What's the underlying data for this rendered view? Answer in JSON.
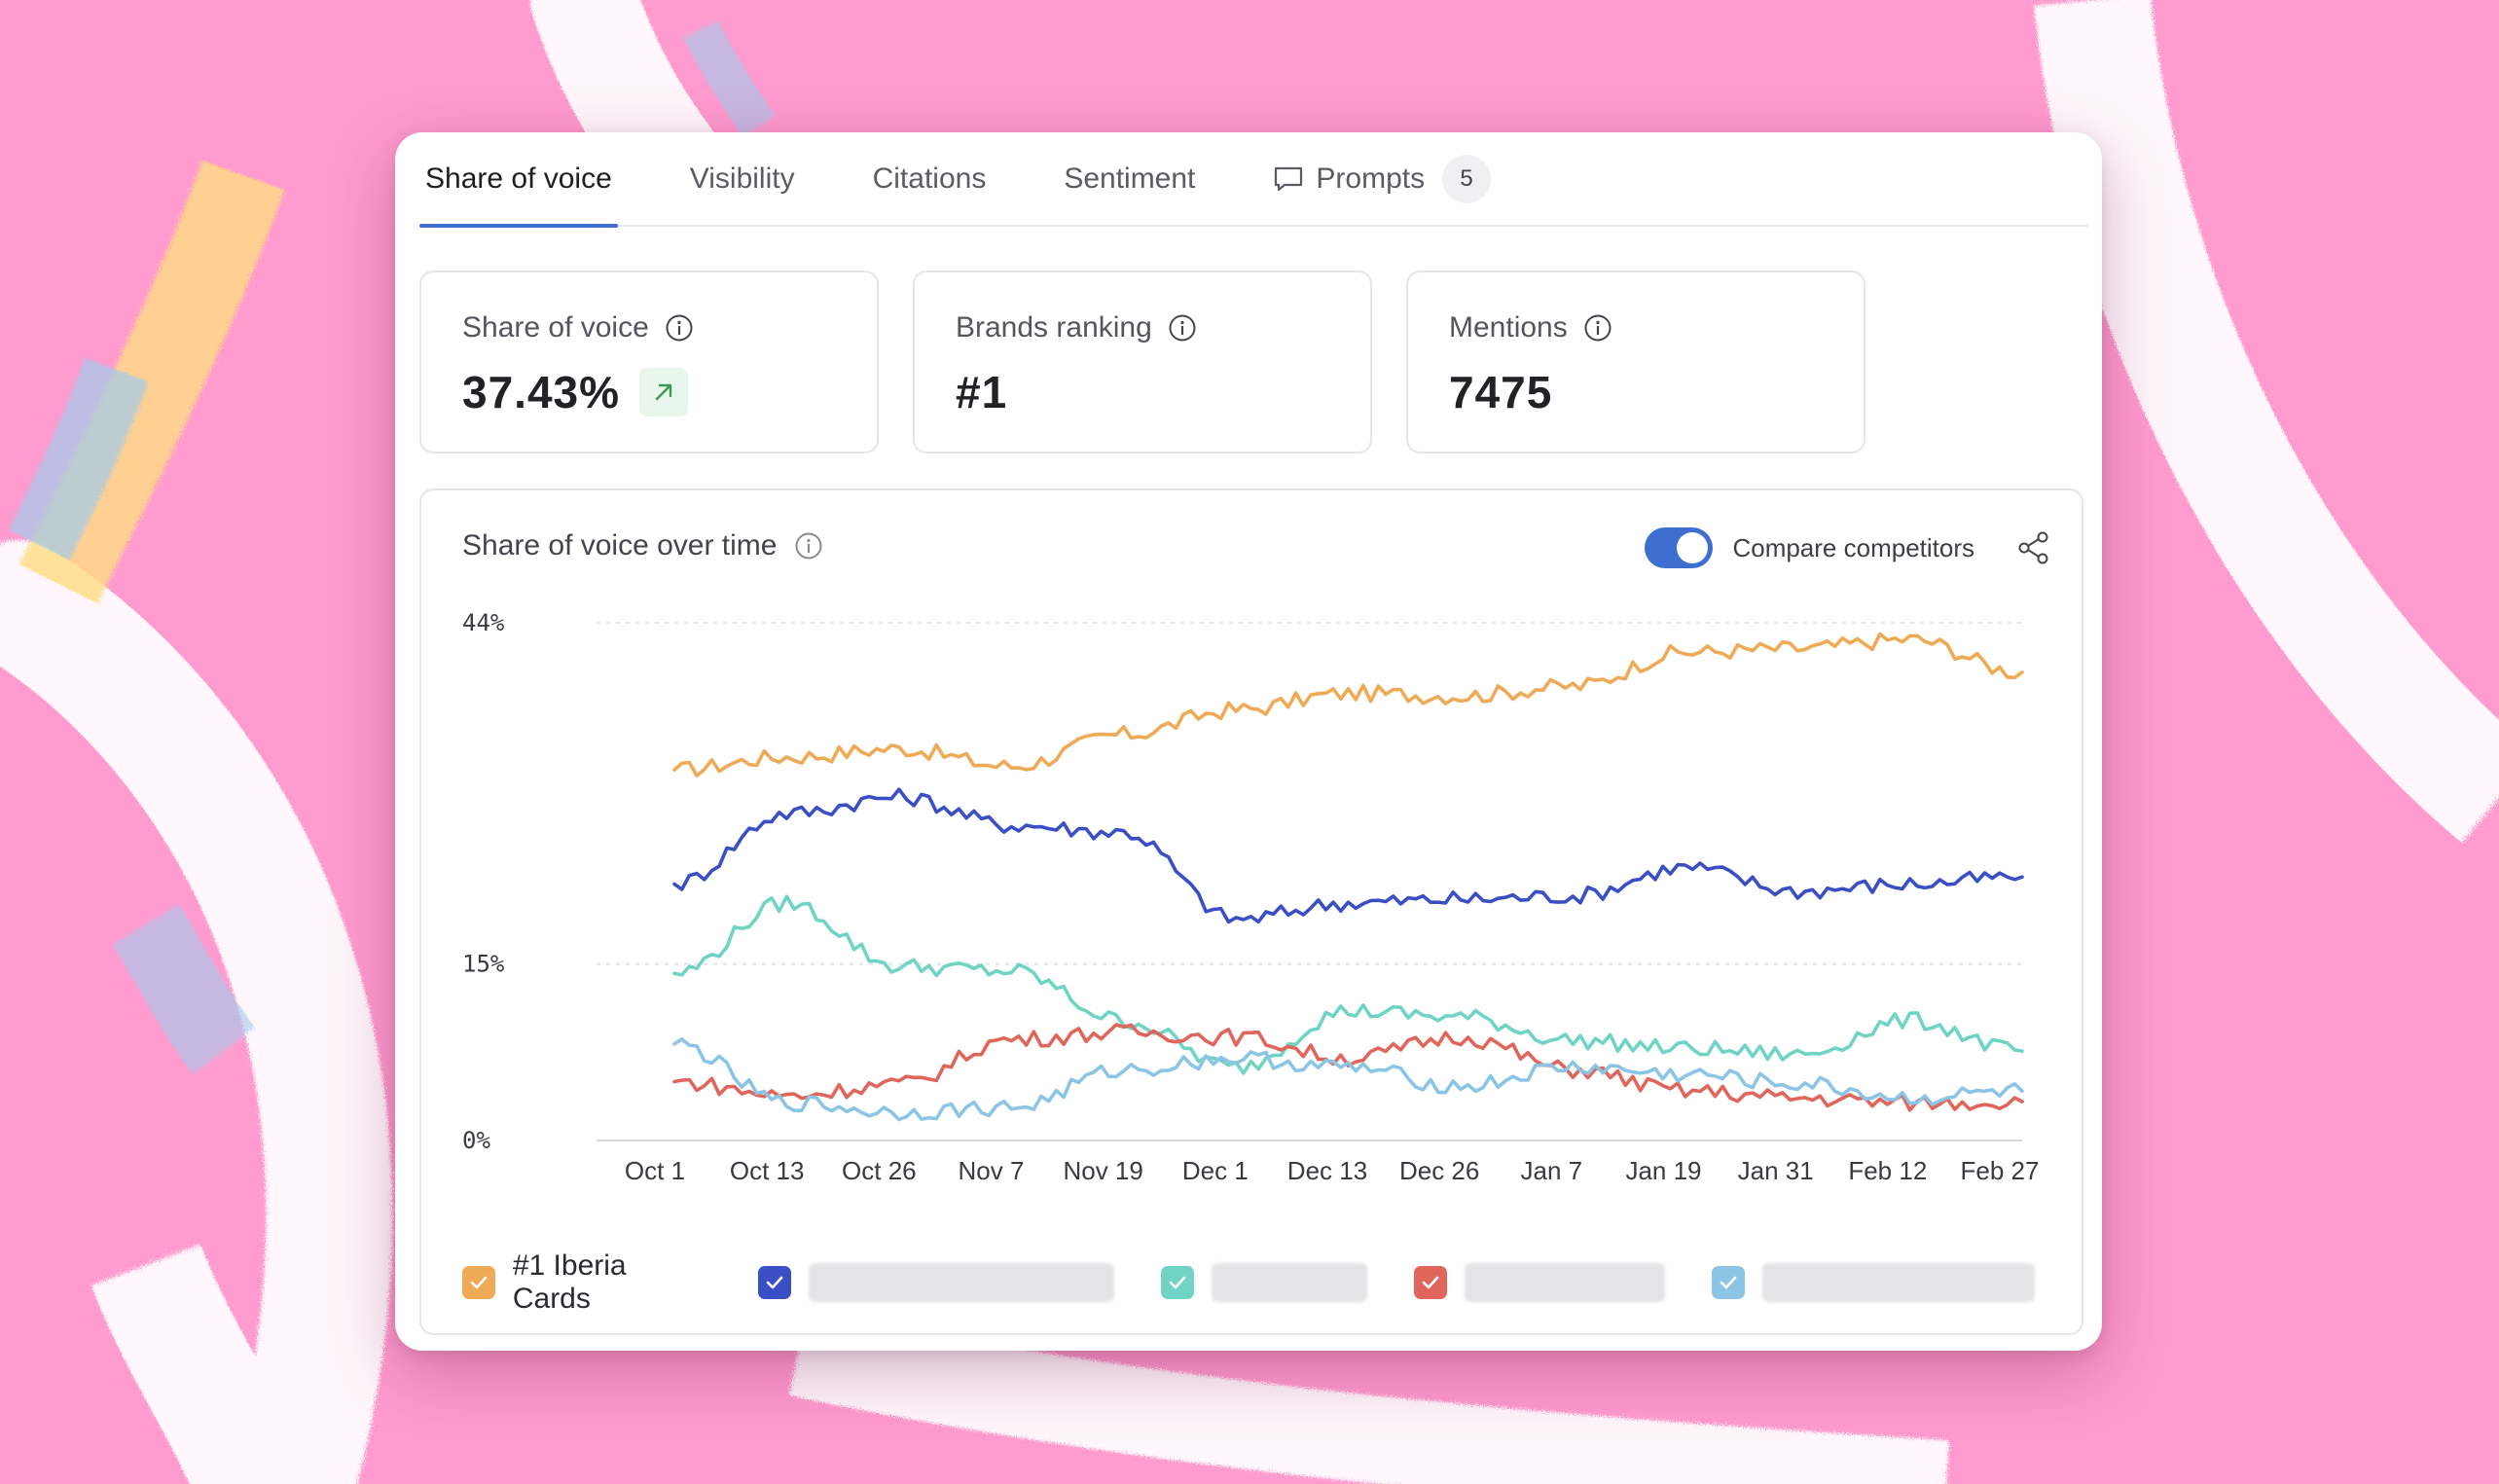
{
  "tabs": [
    {
      "label": "Share of voice",
      "active": true
    },
    {
      "label": "Visibility",
      "active": false
    },
    {
      "label": "Citations",
      "active": false
    },
    {
      "label": "Sentiment",
      "active": false
    },
    {
      "label": "Prompts",
      "active": false,
      "badge": "5",
      "icon": "chat-bubble-icon"
    }
  ],
  "kpis": [
    {
      "label": "Share of voice",
      "value": "37.43%",
      "trend": "up"
    },
    {
      "label": "Brands ranking",
      "value": "#1"
    },
    {
      "label": "Mentions",
      "value": "7475"
    }
  ],
  "panel": {
    "title": "Share of voice over time",
    "compare_label": "Compare competitors",
    "compare_enabled": true
  },
  "legend": [
    {
      "label": "#1 Iberia Cards",
      "color": "#eeaa55",
      "checked": true
    },
    {
      "label": "",
      "color": "#3a4fc6",
      "checked": true
    },
    {
      "label": "",
      "color": "#6fd4c4",
      "checked": true
    },
    {
      "label": "",
      "color": "#e0655a",
      "checked": true
    },
    {
      "label": "",
      "color": "#8bc5e5",
      "checked": true
    }
  ],
  "chart_data": {
    "type": "line",
    "x": [
      "Oct 1",
      "Oct 13",
      "Oct 26",
      "Nov 7",
      "Nov 19",
      "Dec 1",
      "Dec 13",
      "Dec 26",
      "Jan 7",
      "Jan 19",
      "Jan 31",
      "Feb 12",
      "Feb 27"
    ],
    "yticks": [
      "44%",
      "15%",
      "0%"
    ],
    "ylim": [
      0,
      44
    ],
    "grid": true,
    "series": [
      {
        "name": "#1 Iberia Cards",
        "color": "#eeaa55",
        "values": [
          31.5,
          32.6,
          33.3,
          31.8,
          34.5,
          36.6,
          38.0,
          37.8,
          38.6,
          41.5,
          41.8,
          42.6,
          39.8
        ]
      },
      {
        "color": "#3a4fc6",
        "values": [
          21.8,
          27.8,
          29.2,
          26.8,
          26.2,
          18.8,
          20.2,
          20.5,
          20.8,
          23.2,
          21.2,
          21.8,
          22.4
        ]
      },
      {
        "color": "#6fd4c4",
        "values": [
          14.2,
          20.2,
          14.8,
          14.4,
          10.2,
          6.2,
          11.0,
          10.5,
          8.5,
          7.8,
          7.3,
          10.2,
          7.6
        ]
      },
      {
        "color": "#e0655a",
        "values": [
          5.0,
          3.8,
          4.8,
          8.6,
          9.2,
          8.8,
          7.0,
          8.8,
          6.0,
          4.2,
          3.6,
          3.2,
          3.3
        ]
      },
      {
        "color": "#8bc5e5",
        "values": [
          8.2,
          3.2,
          2.4,
          2.8,
          6.0,
          7.0,
          6.2,
          4.6,
          6.2,
          5.6,
          4.8,
          3.6,
          4.2
        ]
      }
    ]
  }
}
